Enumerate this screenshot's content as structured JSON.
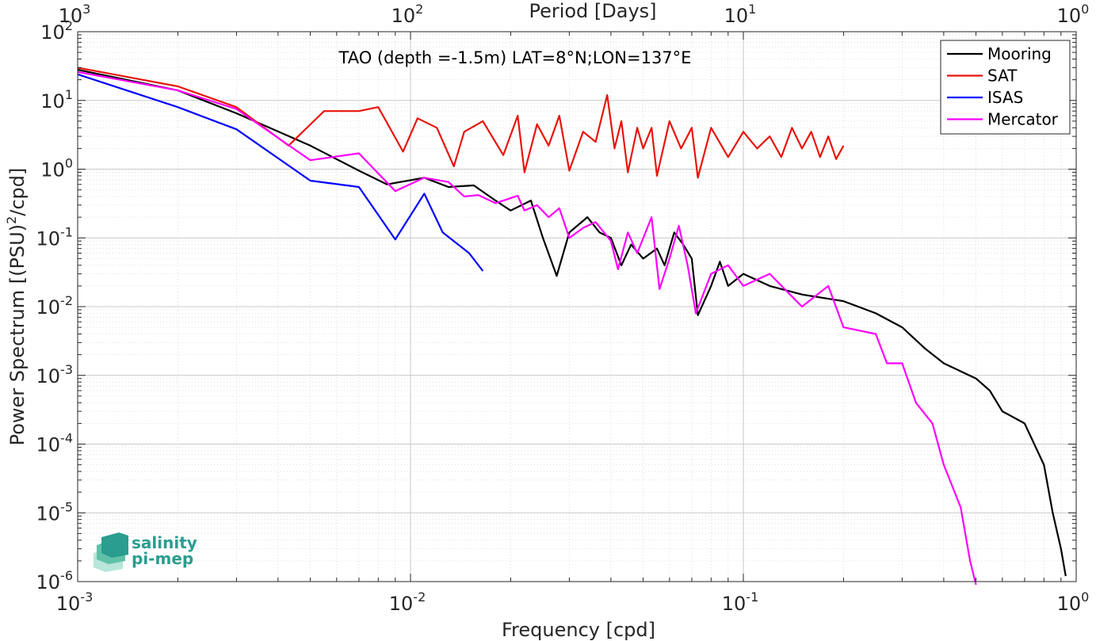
{
  "chart_data": {
    "type": "line",
    "title": "TAO (depth =-1.5m) LAT=8°N;LON=137°E",
    "xlabel": "Frequency [cpd]",
    "ylabel": "Power Spectrum [(PSU)",
    "ylabel_sup": "2",
    "ylabel_suffix": "/cpd]",
    "top_xlabel": "Period [Days]",
    "xscale": "log",
    "yscale": "log",
    "xlim": [
      0.001,
      1
    ],
    "ylim": [
      1e-06,
      100
    ],
    "grid": true,
    "legend_position": "top-right",
    "x_ticks": [
      {
        "value": 0.001,
        "base": "10",
        "exp": "-3"
      },
      {
        "value": 0.01,
        "base": "10",
        "exp": "-2"
      },
      {
        "value": 0.1,
        "base": "10",
        "exp": "-1"
      },
      {
        "value": 1,
        "base": "10",
        "exp": "0"
      }
    ],
    "top_ticks": [
      {
        "value": 0.001,
        "base": "10",
        "exp": "3"
      },
      {
        "value": 0.01,
        "base": "10",
        "exp": "2"
      },
      {
        "value": 0.1,
        "base": "10",
        "exp": "1"
      },
      {
        "value": 1,
        "base": "10",
        "exp": "0"
      }
    ],
    "y_ticks": [
      {
        "value": 100,
        "base": "10",
        "exp": "2"
      },
      {
        "value": 10,
        "base": "10",
        "exp": "1"
      },
      {
        "value": 1,
        "base": "10",
        "exp": "0"
      },
      {
        "value": 0.1,
        "base": "10",
        "exp": "-1"
      },
      {
        "value": 0.01,
        "base": "10",
        "exp": "-2"
      },
      {
        "value": 0.001,
        "base": "10",
        "exp": "-3"
      },
      {
        "value": 0.0001,
        "base": "10",
        "exp": "-4"
      },
      {
        "value": 1e-05,
        "base": "10",
        "exp": "-5"
      },
      {
        "value": 1e-06,
        "base": "10",
        "exp": "-6"
      }
    ],
    "series": [
      {
        "name": "Mooring",
        "color": "#000000",
        "points": [
          [
            0.001,
            28
          ],
          [
            0.002,
            14
          ],
          [
            0.003,
            6.5
          ],
          [
            0.005,
            2.2
          ],
          [
            0.007,
            0.95
          ],
          [
            0.0085,
            0.6
          ],
          [
            0.011,
            0.75
          ],
          [
            0.013,
            0.55
          ],
          [
            0.0155,
            0.58
          ],
          [
            0.018,
            0.35
          ],
          [
            0.02,
            0.25
          ],
          [
            0.023,
            0.35
          ],
          [
            0.025,
            0.1
          ],
          [
            0.0275,
            0.028
          ],
          [
            0.03,
            0.12
          ],
          [
            0.034,
            0.2
          ],
          [
            0.037,
            0.12
          ],
          [
            0.04,
            0.1
          ],
          [
            0.043,
            0.04
          ],
          [
            0.046,
            0.08
          ],
          [
            0.05,
            0.05
          ],
          [
            0.055,
            0.07
          ],
          [
            0.058,
            0.04
          ],
          [
            0.062,
            0.12
          ],
          [
            0.066,
            0.08
          ],
          [
            0.07,
            0.05
          ],
          [
            0.073,
            0.0075
          ],
          [
            0.08,
            0.02
          ],
          [
            0.085,
            0.045
          ],
          [
            0.09,
            0.02
          ],
          [
            0.1,
            0.03
          ],
          [
            0.12,
            0.02
          ],
          [
            0.15,
            0.015
          ],
          [
            0.2,
            0.012
          ],
          [
            0.25,
            0.008
          ],
          [
            0.3,
            0.005
          ],
          [
            0.35,
            0.0025
          ],
          [
            0.4,
            0.0015
          ],
          [
            0.5,
            0.0009
          ],
          [
            0.55,
            0.0006
          ],
          [
            0.6,
            0.0003
          ],
          [
            0.7,
            0.0002
          ],
          [
            0.8,
            5e-05
          ],
          [
            0.85,
            1e-05
          ],
          [
            0.9,
            3e-06
          ],
          [
            0.93,
            1.2e-06
          ]
        ]
      },
      {
        "name": "SAT",
        "color": "#e8140c",
        "points": [
          [
            0.001,
            30
          ],
          [
            0.002,
            16
          ],
          [
            0.003,
            8
          ],
          [
            0.0043,
            2.2
          ],
          [
            0.0055,
            7
          ],
          [
            0.007,
            7
          ],
          [
            0.008,
            8
          ],
          [
            0.0095,
            1.8
          ],
          [
            0.0105,
            5.5
          ],
          [
            0.012,
            4
          ],
          [
            0.0135,
            1.1
          ],
          [
            0.0145,
            3.5
          ],
          [
            0.0165,
            5
          ],
          [
            0.019,
            1.6
          ],
          [
            0.021,
            6
          ],
          [
            0.022,
            0.9
          ],
          [
            0.024,
            4.5
          ],
          [
            0.026,
            2.2
          ],
          [
            0.028,
            6
          ],
          [
            0.03,
            0.95
          ],
          [
            0.033,
            3.5
          ],
          [
            0.036,
            2.5
          ],
          [
            0.039,
            12
          ],
          [
            0.041,
            2
          ],
          [
            0.043,
            5
          ],
          [
            0.045,
            0.9
          ],
          [
            0.048,
            4
          ],
          [
            0.05,
            2
          ],
          [
            0.053,
            4
          ],
          [
            0.055,
            0.8
          ],
          [
            0.06,
            5
          ],
          [
            0.065,
            2
          ],
          [
            0.07,
            4
          ],
          [
            0.073,
            0.75
          ],
          [
            0.08,
            4
          ],
          [
            0.09,
            1.5
          ],
          [
            0.1,
            3.5
          ],
          [
            0.11,
            2
          ],
          [
            0.12,
            3
          ],
          [
            0.13,
            1.5
          ],
          [
            0.14,
            4
          ],
          [
            0.15,
            2
          ],
          [
            0.16,
            3.5
          ],
          [
            0.17,
            1.5
          ],
          [
            0.18,
            3
          ],
          [
            0.19,
            1.4
          ],
          [
            0.2,
            2.2
          ]
        ]
      },
      {
        "name": "ISAS",
        "color": "#0000ff",
        "points": [
          [
            0.001,
            24
          ],
          [
            0.002,
            8
          ],
          [
            0.003,
            3.8
          ],
          [
            0.005,
            0.68
          ],
          [
            0.007,
            0.55
          ],
          [
            0.009,
            0.095
          ],
          [
            0.011,
            0.44
          ],
          [
            0.0125,
            0.12
          ],
          [
            0.015,
            0.06
          ],
          [
            0.0165,
            0.033
          ]
        ]
      },
      {
        "name": "Mercator",
        "color": "#ff00ff",
        "points": [
          [
            0.001,
            26
          ],
          [
            0.002,
            14
          ],
          [
            0.003,
            7.5
          ],
          [
            0.005,
            1.35
          ],
          [
            0.007,
            1.7
          ],
          [
            0.009,
            0.48
          ],
          [
            0.011,
            0.75
          ],
          [
            0.013,
            0.65
          ],
          [
            0.0145,
            0.4
          ],
          [
            0.016,
            0.42
          ],
          [
            0.018,
            0.32
          ],
          [
            0.021,
            0.41
          ],
          [
            0.022,
            0.25
          ],
          [
            0.024,
            0.3
          ],
          [
            0.026,
            0.2
          ],
          [
            0.028,
            0.27
          ],
          [
            0.03,
            0.1
          ],
          [
            0.033,
            0.14
          ],
          [
            0.036,
            0.17
          ],
          [
            0.04,
            0.09
          ],
          [
            0.042,
            0.035
          ],
          [
            0.045,
            0.12
          ],
          [
            0.048,
            0.06
          ],
          [
            0.053,
            0.2
          ],
          [
            0.056,
            0.018
          ],
          [
            0.06,
            0.05
          ],
          [
            0.064,
            0.15
          ],
          [
            0.068,
            0.04
          ],
          [
            0.072,
            0.008
          ],
          [
            0.08,
            0.03
          ],
          [
            0.09,
            0.04
          ],
          [
            0.1,
            0.02
          ],
          [
            0.12,
            0.03
          ],
          [
            0.15,
            0.01
          ],
          [
            0.18,
            0.02
          ],
          [
            0.2,
            0.005
          ],
          [
            0.25,
            0.004
          ],
          [
            0.27,
            0.0015
          ],
          [
            0.3,
            0.0015
          ],
          [
            0.33,
            0.0004
          ],
          [
            0.37,
            0.0002
          ],
          [
            0.4,
            5e-05
          ],
          [
            0.45,
            1.2e-05
          ],
          [
            0.48,
            2e-06
          ],
          [
            0.5,
            9e-07
          ]
        ]
      }
    ]
  },
  "logo": {
    "line1": "salinity",
    "line2": "pi-mep"
  }
}
